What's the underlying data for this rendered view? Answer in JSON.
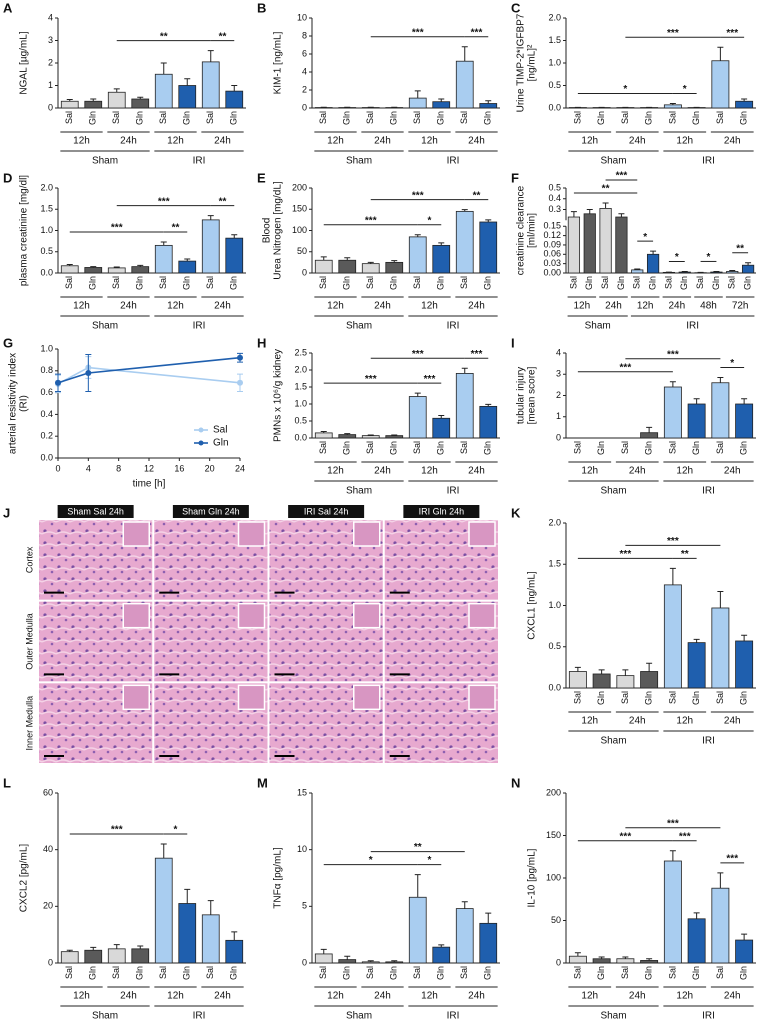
{
  "chart_data": [
    {
      "type": "bar",
      "label": "A",
      "ylabel": [
        "NGAL [µg/mL]"
      ],
      "categories": [
        "Sal",
        "Gln",
        "Sal",
        "Gln",
        "Sal",
        "Gln",
        "Sal",
        "Gln"
      ],
      "values": [
        0.3,
        0.3,
        0.7,
        0.4,
        1.5,
        1.0,
        2.05,
        0.75
      ],
      "errors": [
        0.08,
        0.1,
        0.15,
        0.08,
        0.5,
        0.3,
        0.5,
        0.25
      ],
      "colors": [
        "#d9d9d9",
        "#5a5a5a",
        "#d9d9d9",
        "#5a5a5a",
        "#a9cdf0",
        "#1f5fae",
        "#a9cdf0",
        "#1f5fae"
      ],
      "groups": [
        {
          "name": "Sham",
          "times": [
            "12h",
            "24h"
          ]
        },
        {
          "name": "IRI",
          "times": [
            "12h",
            "24h"
          ]
        }
      ],
      "ylim": [
        0,
        4
      ],
      "yticks": [
        0,
        1,
        2,
        3,
        4
      ],
      "annotations": [
        {
          "from": 2,
          "to": 6,
          "text": "**"
        },
        {
          "from": 6,
          "to": 7,
          "text": "**"
        }
      ]
    },
    {
      "type": "bar",
      "label": "B",
      "ylabel": [
        "KIM-1 [ng/mL]"
      ],
      "categories": [
        "Sal",
        "Gln",
        "Sal",
        "Gln",
        "Sal",
        "Gln",
        "Sal",
        "Gln"
      ],
      "values": [
        0.05,
        0.05,
        0.05,
        0.05,
        1.1,
        0.7,
        5.2,
        0.5
      ],
      "errors": [
        0.03,
        0.03,
        0.03,
        0.03,
        0.8,
        0.3,
        1.6,
        0.3
      ],
      "colors": [
        "#d9d9d9",
        "#5a5a5a",
        "#d9d9d9",
        "#5a5a5a",
        "#a9cdf0",
        "#1f5fae",
        "#a9cdf0",
        "#1f5fae"
      ],
      "groups": [
        {
          "name": "Sham",
          "times": [
            "12h",
            "24h"
          ]
        },
        {
          "name": "IRI",
          "times": [
            "12h",
            "24h"
          ]
        }
      ],
      "ylim": [
        0,
        10
      ],
      "yticks": [
        0,
        2,
        4,
        6,
        8,
        10
      ],
      "annotations": [
        {
          "from": 2,
          "to": 6,
          "text": "***"
        },
        {
          "from": 6,
          "to": 7,
          "text": "***"
        }
      ]
    },
    {
      "type": "bar",
      "label": "C",
      "ylabel": [
        "Urine TIMP-2*IGFBP7",
        "[ng/mL]²"
      ],
      "categories": [
        "Sal",
        "Gln",
        "Sal",
        "Gln",
        "Sal",
        "Gln",
        "Sal",
        "Gln"
      ],
      "values": [
        0.01,
        0.01,
        0.01,
        0.01,
        0.07,
        0.01,
        1.05,
        0.15
      ],
      "errors": [
        0.005,
        0.005,
        0.005,
        0.005,
        0.03,
        0.005,
        0.3,
        0.05
      ],
      "colors": [
        "#d9d9d9",
        "#5a5a5a",
        "#d9d9d9",
        "#5a5a5a",
        "#a9cdf0",
        "#1f5fae",
        "#a9cdf0",
        "#1f5fae"
      ],
      "groups": [
        {
          "name": "Sham",
          "times": [
            "12h",
            "24h"
          ]
        },
        {
          "name": "IRI",
          "times": [
            "12h",
            "24h"
          ]
        }
      ],
      "ylim": [
        0,
        2
      ],
      "yticks": [
        {
          "value": 0,
          "label": "0.0"
        },
        0.5,
        {
          "value": 1,
          "label": "1.0"
        },
        1.5,
        {
          "value": 2,
          "label": "2.0"
        }
      ],
      "annotations": [
        {
          "from": 0,
          "to": 4,
          "text": "*"
        },
        {
          "from": 4,
          "to": 5,
          "text": "*"
        },
        {
          "from": 2,
          "to": 6,
          "text": "***"
        },
        {
          "from": 6,
          "to": 7,
          "text": "***"
        }
      ]
    },
    {
      "type": "bar",
      "label": "D",
      "ylabel": [
        "plasma creatinine [mg/dl]"
      ],
      "categories": [
        "Sal",
        "Gln",
        "Sal",
        "Gln",
        "Sal",
        "Gln",
        "Sal",
        "Gln"
      ],
      "values": [
        0.17,
        0.13,
        0.12,
        0.15,
        0.65,
        0.28,
        1.25,
        0.82
      ],
      "errors": [
        0.03,
        0.02,
        0.02,
        0.03,
        0.08,
        0.05,
        0.1,
        0.08
      ],
      "colors": [
        "#d9d9d9",
        "#5a5a5a",
        "#d9d9d9",
        "#5a5a5a",
        "#a9cdf0",
        "#1f5fae",
        "#a9cdf0",
        "#1f5fae"
      ],
      "groups": [
        {
          "name": "Sham",
          "times": [
            "12h",
            "24h"
          ]
        },
        {
          "name": "IRI",
          "times": [
            "12h",
            "24h"
          ]
        }
      ],
      "ylim": [
        0,
        2
      ],
      "yticks": [
        {
          "value": 0,
          "label": "0.0"
        },
        0.5,
        {
          "value": 1,
          "label": "1.0"
        },
        1.5,
        {
          "value": 2,
          "label": "2.0"
        }
      ],
      "annotations": [
        {
          "from": 0,
          "to": 4,
          "text": "***"
        },
        {
          "from": 4,
          "to": 5,
          "text": "**"
        },
        {
          "from": 2,
          "to": 6,
          "text": "***"
        },
        {
          "from": 6,
          "to": 7,
          "text": "**"
        }
      ]
    },
    {
      "type": "bar",
      "label": "E",
      "ylabel": [
        "Blood",
        "Urea Nitrogen [mg/dL]"
      ],
      "categories": [
        "Sal",
        "Gln",
        "Sal",
        "Gln",
        "Sal",
        "Gln",
        "Sal",
        "Gln"
      ],
      "values": [
        30,
        30,
        22,
        25,
        85,
        65,
        145,
        120
      ],
      "errors": [
        8,
        6,
        3,
        4,
        5,
        6,
        4,
        5
      ],
      "colors": [
        "#d9d9d9",
        "#5a5a5a",
        "#d9d9d9",
        "#5a5a5a",
        "#a9cdf0",
        "#1f5fae",
        "#a9cdf0",
        "#1f5fae"
      ],
      "groups": [
        {
          "name": "Sham",
          "times": [
            "12h",
            "24h"
          ]
        },
        {
          "name": "IRI",
          "times": [
            "12h",
            "24h"
          ]
        }
      ],
      "ylim": [
        0,
        200
      ],
      "yticks": [
        0,
        50,
        100,
        150,
        200
      ],
      "annotations": [
        {
          "from": 0,
          "to": 4,
          "text": "***"
        },
        {
          "from": 4,
          "to": 5,
          "text": "*"
        },
        {
          "from": 2,
          "to": 6,
          "text": "***"
        },
        {
          "from": 6,
          "to": 7,
          "text": "**"
        }
      ]
    },
    {
      "type": "bar",
      "label": "F",
      "ylabel": [
        "creatinine clearance",
        "[ml/min]"
      ],
      "categories": [
        "Sal",
        "Gln",
        "Sal",
        "Gln",
        "Sal",
        "Gln",
        "Sal",
        "Gln",
        "Sal",
        "Gln",
        "Sal",
        "Gln"
      ],
      "values": [
        0.23,
        0.26,
        0.31,
        0.23,
        0.01,
        0.06,
        0.002,
        0.003,
        0.001,
        0.003,
        0.005,
        0.025
      ],
      "errors": [
        0.05,
        0.04,
        0.05,
        0.03,
        0.003,
        0.01,
        0.001,
        0.002,
        0.001,
        0.002,
        0.003,
        0.008
      ],
      "colors": [
        "#d9d9d9",
        "#5a5a5a",
        "#d9d9d9",
        "#5a5a5a",
        "#a9cdf0",
        "#1f5fae",
        "#a9cdf0",
        "#1f5fae",
        "#a9cdf0",
        "#1f5fae",
        "#a9cdf0",
        "#1f5fae"
      ],
      "groups": [
        {
          "name": "Sham",
          "times": [
            "12h",
            "24h"
          ]
        },
        {
          "name": "IRI",
          "times": [
            "12h",
            "24h",
            "48h",
            "72h"
          ]
        }
      ],
      "ylim": [
        0,
        0.5
      ],
      "ybreak": [
        0.15,
        0.2
      ],
      "yticks": [
        {
          "value": 0,
          "label": "0.00"
        },
        0.03,
        0.06,
        0.09,
        0.12,
        0.15,
        0.3,
        0.4,
        0.5
      ],
      "annotations": [
        {
          "from": 0,
          "to": 4,
          "text": "**"
        },
        {
          "from": 4,
          "to": 5,
          "text": "*"
        },
        {
          "from": 2,
          "to": 4,
          "text": "***"
        },
        {
          "from": 6,
          "to": 7,
          "text": "*"
        },
        {
          "from": 8,
          "to": 9,
          "text": "*"
        },
        {
          "from": 10,
          "to": 11,
          "text": "**"
        }
      ]
    },
    {
      "type": "line",
      "label": "G",
      "ylabel": [
        "arterial resistivity index",
        "(RI)"
      ],
      "xlabel": "time [h]",
      "x": [
        0,
        4,
        24
      ],
      "series": [
        {
          "name": "Sal",
          "color": "#a9cdf0",
          "values": [
            0.68,
            0.83,
            0.69
          ],
          "errors": [
            0.08,
            0.1,
            0.08
          ]
        },
        {
          "name": "Gln",
          "color": "#1f5fae",
          "values": [
            0.69,
            0.78,
            0.92
          ],
          "errors": [
            0.08,
            0.17,
            0.04
          ]
        }
      ],
      "xlim": [
        0,
        24
      ],
      "xticks": [
        0,
        4,
        8,
        12,
        16,
        20,
        24
      ],
      "ylim": [
        0,
        1
      ],
      "yticks": [
        {
          "value": 0,
          "label": "0.0"
        },
        0.2,
        0.4,
        0.6,
        0.8,
        {
          "value": 1,
          "label": "1.0"
        }
      ],
      "legend": "lower right"
    },
    {
      "type": "bar",
      "label": "H",
      "ylabel": [
        "PMNs x 10⁶/g kidney"
      ],
      "categories": [
        "Sal",
        "Gln",
        "Sal",
        "Gln",
        "Sal",
        "Gln",
        "Sal",
        "Gln"
      ],
      "values": [
        0.15,
        0.1,
        0.07,
        0.07,
        1.22,
        0.58,
        1.9,
        0.93
      ],
      "errors": [
        0.04,
        0.03,
        0.02,
        0.02,
        0.1,
        0.08,
        0.15,
        0.06
      ],
      "colors": [
        "#d9d9d9",
        "#5a5a5a",
        "#d9d9d9",
        "#5a5a5a",
        "#a9cdf0",
        "#1f5fae",
        "#a9cdf0",
        "#1f5fae"
      ],
      "groups": [
        {
          "name": "Sham",
          "times": [
            "12h",
            "24h"
          ]
        },
        {
          "name": "IRI",
          "times": [
            "12h",
            "24h"
          ]
        }
      ],
      "ylim": [
        0,
        2.5
      ],
      "yticks": [
        {
          "value": 0,
          "label": "0.0"
        },
        0.5,
        {
          "value": 1,
          "label": "1.0"
        },
        1.5,
        {
          "value": 2,
          "label": "2.0"
        },
        2.5
      ],
      "annotations": [
        {
          "from": 0,
          "to": 4,
          "text": "***"
        },
        {
          "from": 4,
          "to": 5,
          "text": "***"
        },
        {
          "from": 2,
          "to": 6,
          "text": "***"
        },
        {
          "from": 6,
          "to": 7,
          "text": "***"
        }
      ]
    },
    {
      "type": "bar",
      "label": "I",
      "ylabel": [
        "tubular injury",
        "[mean score]"
      ],
      "categories": [
        "Sal",
        "Gln",
        "Sal",
        "Gln",
        "Sal",
        "Gln",
        "Sal",
        "Gln"
      ],
      "values": [
        0,
        0,
        0,
        0.25,
        2.4,
        1.6,
        2.6,
        1.6
      ],
      "errors": [
        0,
        0,
        0,
        0.25,
        0.25,
        0.25,
        0.25,
        0.25
      ],
      "colors": [
        "#d9d9d9",
        "#5a5a5a",
        "#d9d9d9",
        "#5a5a5a",
        "#a9cdf0",
        "#1f5fae",
        "#a9cdf0",
        "#1f5fae"
      ],
      "groups": [
        {
          "name": "Sham",
          "times": [
            "12h",
            "24h"
          ]
        },
        {
          "name": "IRI",
          "times": [
            "12h",
            "24h"
          ]
        }
      ],
      "ylim": [
        0,
        4
      ],
      "yticks": [
        0,
        1,
        2,
        3,
        4
      ],
      "annotations": [
        {
          "from": 0,
          "to": 4,
          "text": "***"
        },
        {
          "from": 2,
          "to": 6,
          "text": "***"
        },
        {
          "from": 6,
          "to": 7,
          "text": "*"
        }
      ]
    },
    {
      "type": "micrograph-grid",
      "label": "J",
      "columns": [
        "Sham Sal 24h",
        "Sham Gln 24h",
        "IRI Sal 24h",
        "IRI Gln 24h"
      ],
      "rows": [
        "Cortex",
        "Outer Medulla",
        "Inner Medulla"
      ]
    },
    {
      "type": "bar",
      "label": "K",
      "ylabel": [
        "CXCL1 [ng/mL]"
      ],
      "categories": [
        "Sal",
        "Gln",
        "Sal",
        "Gln",
        "Sal",
        "Gln",
        "Sal",
        "Gln"
      ],
      "values": [
        0.2,
        0.17,
        0.15,
        0.2,
        1.25,
        0.55,
        0.97,
        0.57
      ],
      "errors": [
        0.05,
        0.05,
        0.07,
        0.1,
        0.2,
        0.04,
        0.2,
        0.07
      ],
      "colors": [
        "#d9d9d9",
        "#5a5a5a",
        "#d9d9d9",
        "#5a5a5a",
        "#a9cdf0",
        "#1f5fae",
        "#a9cdf0",
        "#1f5fae"
      ],
      "groups": [
        {
          "name": "Sham",
          "times": [
            "12h",
            "24h"
          ]
        },
        {
          "name": "IRI",
          "times": [
            "12h",
            "24h"
          ]
        }
      ],
      "ylim": [
        0,
        2
      ],
      "yticks": [
        {
          "value": 0,
          "label": "0.0"
        },
        0.5,
        {
          "value": 1,
          "label": "1.0"
        },
        1.5,
        {
          "value": 2,
          "label": "2.0"
        }
      ],
      "annotations": [
        {
          "from": 0,
          "to": 4,
          "text": "***"
        },
        {
          "from": 4,
          "to": 5,
          "text": "**"
        },
        {
          "from": 2,
          "to": 6,
          "text": "***"
        }
      ]
    },
    {
      "type": "bar",
      "label": "L",
      "ylabel": [
        "CXCL2 [pg/mL]"
      ],
      "categories": [
        "Sal",
        "Gln",
        "Sal",
        "Gln",
        "Sal",
        "Gln",
        "Sal",
        "Gln"
      ],
      "values": [
        4,
        4.5,
        5,
        5,
        37,
        21,
        17,
        8
      ],
      "errors": [
        0.5,
        1,
        1.5,
        1,
        5,
        5,
        5,
        3
      ],
      "colors": [
        "#d9d9d9",
        "#5a5a5a",
        "#d9d9d9",
        "#5a5a5a",
        "#a9cdf0",
        "#1f5fae",
        "#a9cdf0",
        "#1f5fae"
      ],
      "groups": [
        {
          "name": "Sham",
          "times": [
            "12h",
            "24h"
          ]
        },
        {
          "name": "IRI",
          "times": [
            "12h",
            "24h"
          ]
        }
      ],
      "ylim": [
        0,
        60
      ],
      "yticks": [
        0,
        20,
        40,
        60
      ],
      "annotations": [
        {
          "from": 0,
          "to": 4,
          "text": "***"
        },
        {
          "from": 4,
          "to": 5,
          "text": "*"
        }
      ]
    },
    {
      "type": "bar",
      "label": "M",
      "ylabel": [
        "TNFα [pg/mL]"
      ],
      "categories": [
        "Sal",
        "Gln",
        "Sal",
        "Gln",
        "Sal",
        "Gln",
        "Sal",
        "Gln"
      ],
      "values": [
        0.8,
        0.3,
        0.1,
        0.1,
        5.8,
        1.4,
        4.8,
        3.5
      ],
      "errors": [
        0.4,
        0.3,
        0.1,
        0.1,
        2,
        0.2,
        0.6,
        0.9
      ],
      "colors": [
        "#d9d9d9",
        "#5a5a5a",
        "#d9d9d9",
        "#5a5a5a",
        "#a9cdf0",
        "#1f5fae",
        "#a9cdf0",
        "#1f5fae"
      ],
      "groups": [
        {
          "name": "Sham",
          "times": [
            "12h",
            "24h"
          ]
        },
        {
          "name": "IRI",
          "times": [
            "12h",
            "24h"
          ]
        }
      ],
      "ylim": [
        0,
        15
      ],
      "yticks": [
        0,
        5,
        10,
        15
      ],
      "annotations": [
        {
          "from": 0,
          "to": 4,
          "text": "*"
        },
        {
          "from": 4,
          "to": 5,
          "text": "*"
        },
        {
          "from": 2,
          "to": 6,
          "text": "**"
        }
      ]
    },
    {
      "type": "bar",
      "label": "N",
      "ylabel": [
        "IL-10 [pg/mL]"
      ],
      "categories": [
        "Sal",
        "Gln",
        "Sal",
        "Gln",
        "Sal",
        "Gln",
        "Sal",
        "Gln"
      ],
      "values": [
        8,
        5,
        5,
        3,
        120,
        52,
        88,
        27
      ],
      "errors": [
        4,
        2,
        2,
        2,
        12,
        7,
        18,
        7
      ],
      "colors": [
        "#d9d9d9",
        "#5a5a5a",
        "#d9d9d9",
        "#5a5a5a",
        "#a9cdf0",
        "#1f5fae",
        "#a9cdf0",
        "#1f5fae"
      ],
      "groups": [
        {
          "name": "Sham",
          "times": [
            "12h",
            "24h"
          ]
        },
        {
          "name": "IRI",
          "times": [
            "12h",
            "24h"
          ]
        }
      ],
      "ylim": [
        0,
        200
      ],
      "yticks": [
        0,
        50,
        100,
        150,
        200
      ],
      "annotations": [
        {
          "from": 0,
          "to": 4,
          "text": "***"
        },
        {
          "from": 4,
          "to": 5,
          "text": "***"
        },
        {
          "from": 2,
          "to": 6,
          "text": "***"
        },
        {
          "from": 6,
          "to": 7,
          "text": "***"
        }
      ]
    }
  ]
}
